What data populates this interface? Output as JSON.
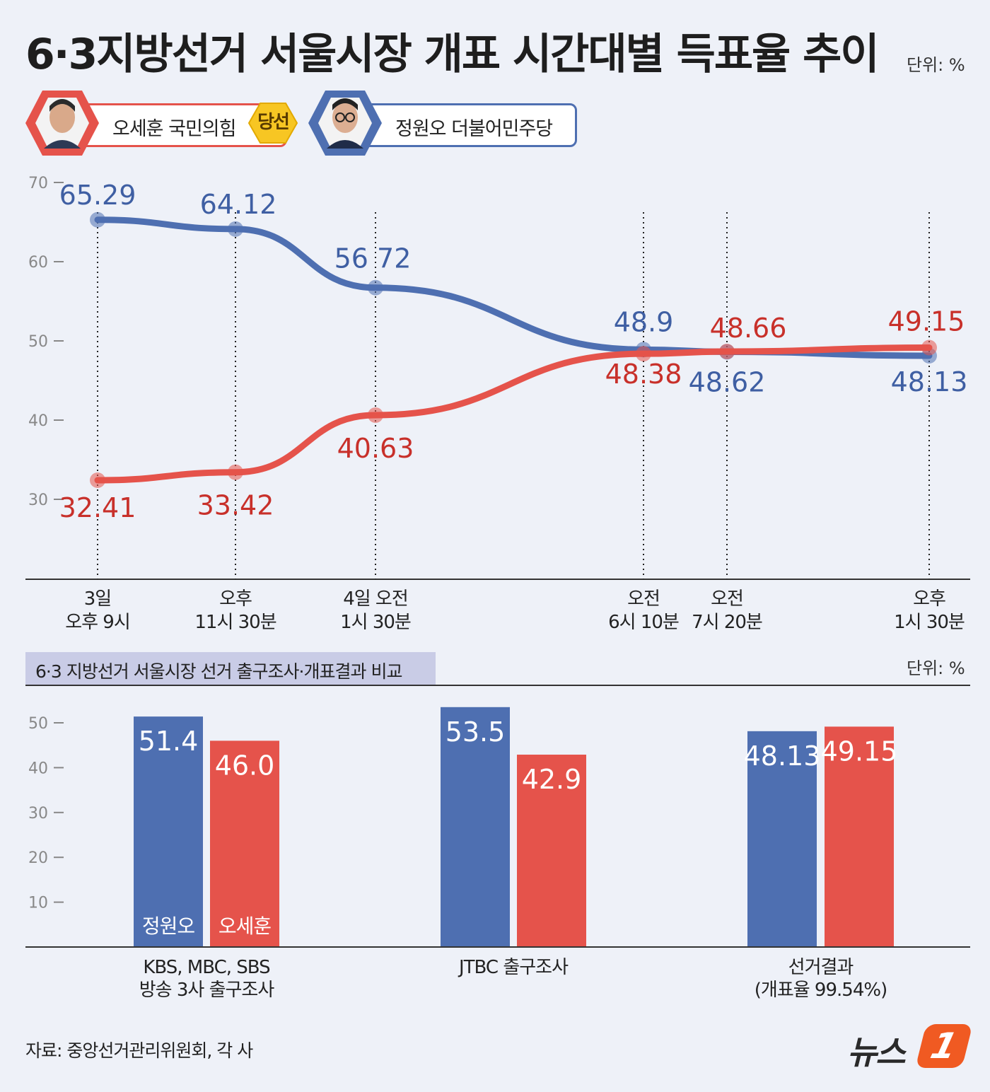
{
  "title": "6·3지방선거 서울시장 개표 시간대별 득표율 추이",
  "unit_label": "단위: %",
  "legend": {
    "oh": "오세훈 국민의힘",
    "winner_badge": "당선",
    "jeong": "정원오 더불어민주당"
  },
  "colors": {
    "oh": "#e5534b",
    "jeong": "#4e6fb1",
    "oh_text": "#c8302a",
    "jeong_text": "#3f5fa3",
    "badge": "#f7c623"
  },
  "chart_data": [
    {
      "type": "line",
      "ylim": [
        25,
        72
      ],
      "yticks": [
        30,
        40,
        50,
        60,
        70
      ],
      "x_labels": [
        [
          "3일",
          "오후 9시"
        ],
        [
          "오후",
          "11시 30분"
        ],
        [
          "4일 오전",
          "1시 30분"
        ],
        [
          "오전",
          "6시 10분"
        ],
        [
          "오전",
          "7시 20분"
        ],
        [
          "오후",
          "1시 30분"
        ]
      ],
      "series": [
        {
          "name": "정원오",
          "values": [
            65.29,
            64.12,
            56.72,
            48.9,
            48.62,
            48.13
          ],
          "labels": [
            "65.29",
            "64.12",
            "56 72",
            "48.9",
            "48.62",
            "48.13"
          ]
        },
        {
          "name": "오세훈",
          "values": [
            32.41,
            33.42,
            40.63,
            48.38,
            48.66,
            49.15
          ],
          "labels": [
            "32.41",
            "33.42",
            "40.63",
            "48.38",
            "48.66",
            "49.15"
          ]
        }
      ]
    },
    {
      "type": "bar",
      "title": "6·3 지방선거 서울시장 선거 출구조사·개표결과 비교",
      "ylim": [
        0,
        55
      ],
      "yticks": [
        10,
        20,
        30,
        40,
        50
      ],
      "categories": [
        [
          "KBS, MBC, SBS",
          "방송 3사 출구조사"
        ],
        [
          "JTBC 출구조사"
        ],
        [
          "선거결과",
          "(개표율 99.54%)"
        ]
      ],
      "series": [
        {
          "name": "정원오",
          "values": [
            51.4,
            53.5,
            48.13
          ],
          "labels": [
            "51.4",
            "53.5",
            "48.13"
          ]
        },
        {
          "name": "오세훈",
          "values": [
            46.0,
            42.9,
            49.15
          ],
          "labels": [
            "46.0",
            "42.9",
            "49.15"
          ]
        }
      ]
    }
  ],
  "source": "자료: 중앙선거관리위원회, 각 사",
  "logo": {
    "text": "뉴스",
    "mark": "1"
  }
}
